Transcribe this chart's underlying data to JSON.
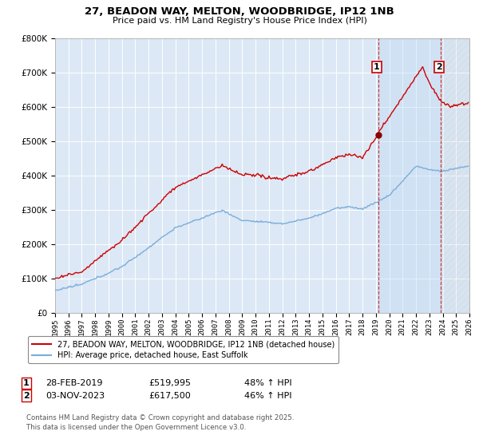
{
  "title_line1": "27, BEADON WAY, MELTON, WOODBRIDGE, IP12 1NB",
  "title_line2": "Price paid vs. HM Land Registry's House Price Index (HPI)",
  "background_color": "#ffffff",
  "plot_bg_color": "#dce8f5",
  "grid_color": "#ffffff",
  "red_color": "#cc0000",
  "blue_color": "#7aaddb",
  "marker1_year": 2019.17,
  "marker2_year": 2023.84,
  "marker1_price": 519995,
  "marker2_price": 617500,
  "marker1_label": "1",
  "marker2_label": "2",
  "marker1_date": "28-FEB-2019",
  "marker2_date": "03-NOV-2023",
  "marker1_pct": "48% ↑ HPI",
  "marker2_pct": "46% ↑ HPI",
  "legend_red": "27, BEADON WAY, MELTON, WOODBRIDGE, IP12 1NB (detached house)",
  "legend_blue": "HPI: Average price, detached house, East Suffolk",
  "footer": "Contains HM Land Registry data © Crown copyright and database right 2025.\nThis data is licensed under the Open Government Licence v3.0.",
  "xlim_left": 1995.0,
  "xlim_right": 2026.0,
  "ylim_bottom": 0,
  "ylim_top": 800000
}
